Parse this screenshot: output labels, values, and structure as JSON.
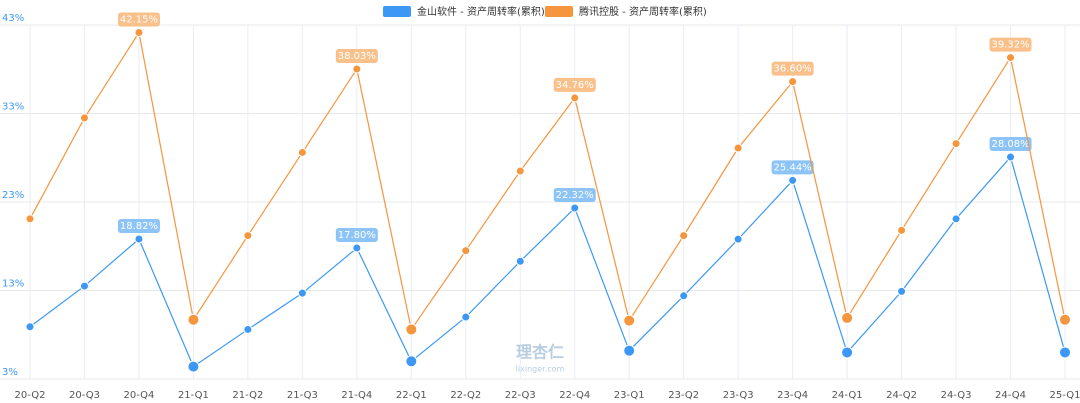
{
  "chart_data": {
    "type": "line",
    "legend": "top",
    "grid": true,
    "categories": [
      "20-Q2",
      "20-Q3",
      "20-Q4",
      "21-Q1",
      "21-Q2",
      "21-Q3",
      "21-Q4",
      "22-Q1",
      "22-Q2",
      "22-Q3",
      "22-Q4",
      "23-Q1",
      "23-Q2",
      "23-Q3",
      "23-Q4",
      "24-Q1",
      "24-Q2",
      "24-Q3",
      "24-Q4",
      "25-Q1"
    ],
    "series": [
      {
        "name": "金山软件 - 资产周转率(累积)",
        "color": "#3d98f5",
        "values": [
          8.9,
          13.5,
          18.82,
          4.4,
          8.6,
          12.7,
          17.8,
          5.0,
          10.0,
          16.3,
          22.32,
          6.2,
          12.4,
          18.8,
          25.44,
          6.0,
          12.9,
          21.1,
          28.08,
          6.0
        ],
        "value_labels": [
          null,
          null,
          "18.82%",
          null,
          null,
          null,
          "17.80%",
          null,
          null,
          null,
          "22.32%",
          null,
          null,
          null,
          "25.44%",
          null,
          null,
          null,
          "28.08%",
          null
        ]
      },
      {
        "name": "腾讯控股 - 资产周转率(累积)",
        "color": "#f5953d",
        "values": [
          21.1,
          32.5,
          42.15,
          9.7,
          19.2,
          28.6,
          38.03,
          8.6,
          17.5,
          26.5,
          34.76,
          9.6,
          19.2,
          29.1,
          36.6,
          9.9,
          19.8,
          29.6,
          39.32,
          9.7
        ],
        "value_labels": [
          null,
          null,
          "42.15%",
          null,
          null,
          null,
          "38.03%",
          null,
          null,
          null,
          "34.76%",
          null,
          null,
          null,
          "36.60%",
          null,
          null,
          null,
          "39.32%",
          null
        ]
      }
    ],
    "ylim": [
      3,
      43
    ],
    "yticks": [
      {
        "value": 3,
        "label": "3%"
      },
      {
        "value": 13,
        "label": "13%"
      },
      {
        "value": 23,
        "label": "23%"
      },
      {
        "value": 33,
        "label": "33%"
      },
      {
        "value": 43,
        "label": "43%"
      }
    ],
    "watermark": [
      "理杏仁",
      "lixinger.com"
    ]
  }
}
